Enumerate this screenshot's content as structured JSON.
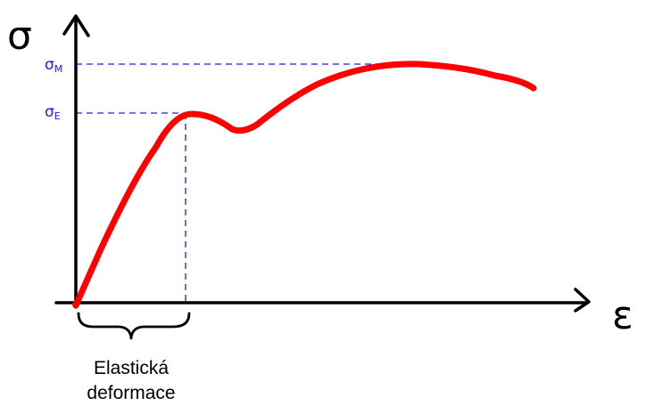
{
  "axes": {
    "y_symbol": "σ",
    "x_symbol": "ε"
  },
  "levels": {
    "sigma_m": {
      "base": "σ",
      "sub": "M"
    },
    "sigma_e": {
      "base": "σ",
      "sub": "E"
    }
  },
  "region_label": {
    "line1": "Elastická",
    "line2": "deformace"
  },
  "colors": {
    "curve": "#ff0000",
    "guides": "#1a1aff",
    "axes": "#000000"
  }
}
